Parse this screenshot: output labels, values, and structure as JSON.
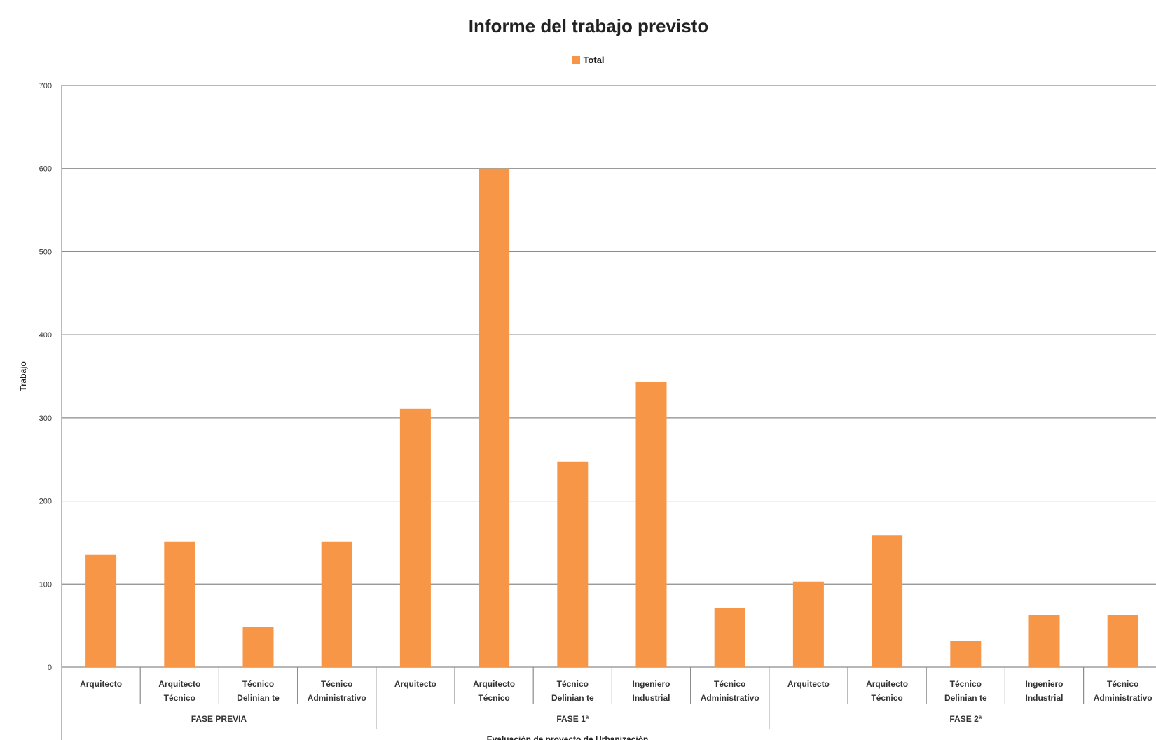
{
  "chart_data": {
    "type": "bar",
    "title": "Informe del trabajo previsto",
    "ylabel": "Trabajo",
    "xlabel": "Evaluación de proyecto de Urbanización",
    "ylim": [
      0,
      700
    ],
    "yticks": [
      0,
      100,
      200,
      300,
      400,
      500,
      600,
      700
    ],
    "grid": true,
    "legend": "top-center",
    "bar_color": "#F79646",
    "series": [
      {
        "name": "Total"
      }
    ],
    "groups": [
      {
        "label": "FASE PREVIA",
        "bars": [
          {
            "label": [
              "Arquitecto"
            ],
            "value": 135
          },
          {
            "label": [
              "Arquitecto",
              "Técnico"
            ],
            "value": 151
          },
          {
            "label": [
              "Técnico",
              "Delinian te"
            ],
            "value": 48
          },
          {
            "label": [
              "Técnico",
              "Administrativo"
            ],
            "value": 151
          }
        ]
      },
      {
        "label": "FASE 1ª",
        "bars": [
          {
            "label": [
              "Arquitecto"
            ],
            "value": 311
          },
          {
            "label": [
              "Arquitecto",
              "Técnico"
            ],
            "value": 600
          },
          {
            "label": [
              "Técnico",
              "Delinian te"
            ],
            "value": 247
          },
          {
            "label": [
              "Ingeniero",
              "Industrial"
            ],
            "value": 343
          },
          {
            "label": [
              "Técnico",
              "Administrativo"
            ],
            "value": 71
          }
        ]
      },
      {
        "label": "FASE 2ª",
        "bars": [
          {
            "label": [
              "Arquitecto"
            ],
            "value": 103
          },
          {
            "label": [
              "Arquitecto",
              "Técnico"
            ],
            "value": 159
          },
          {
            "label": [
              "Técnico",
              "Delinian te"
            ],
            "value": 32
          },
          {
            "label": [
              "Ingeniero",
              "Industrial"
            ],
            "value": 63
          },
          {
            "label": [
              "Técnico",
              "Administrativo"
            ],
            "value": 63
          }
        ]
      }
    ]
  }
}
